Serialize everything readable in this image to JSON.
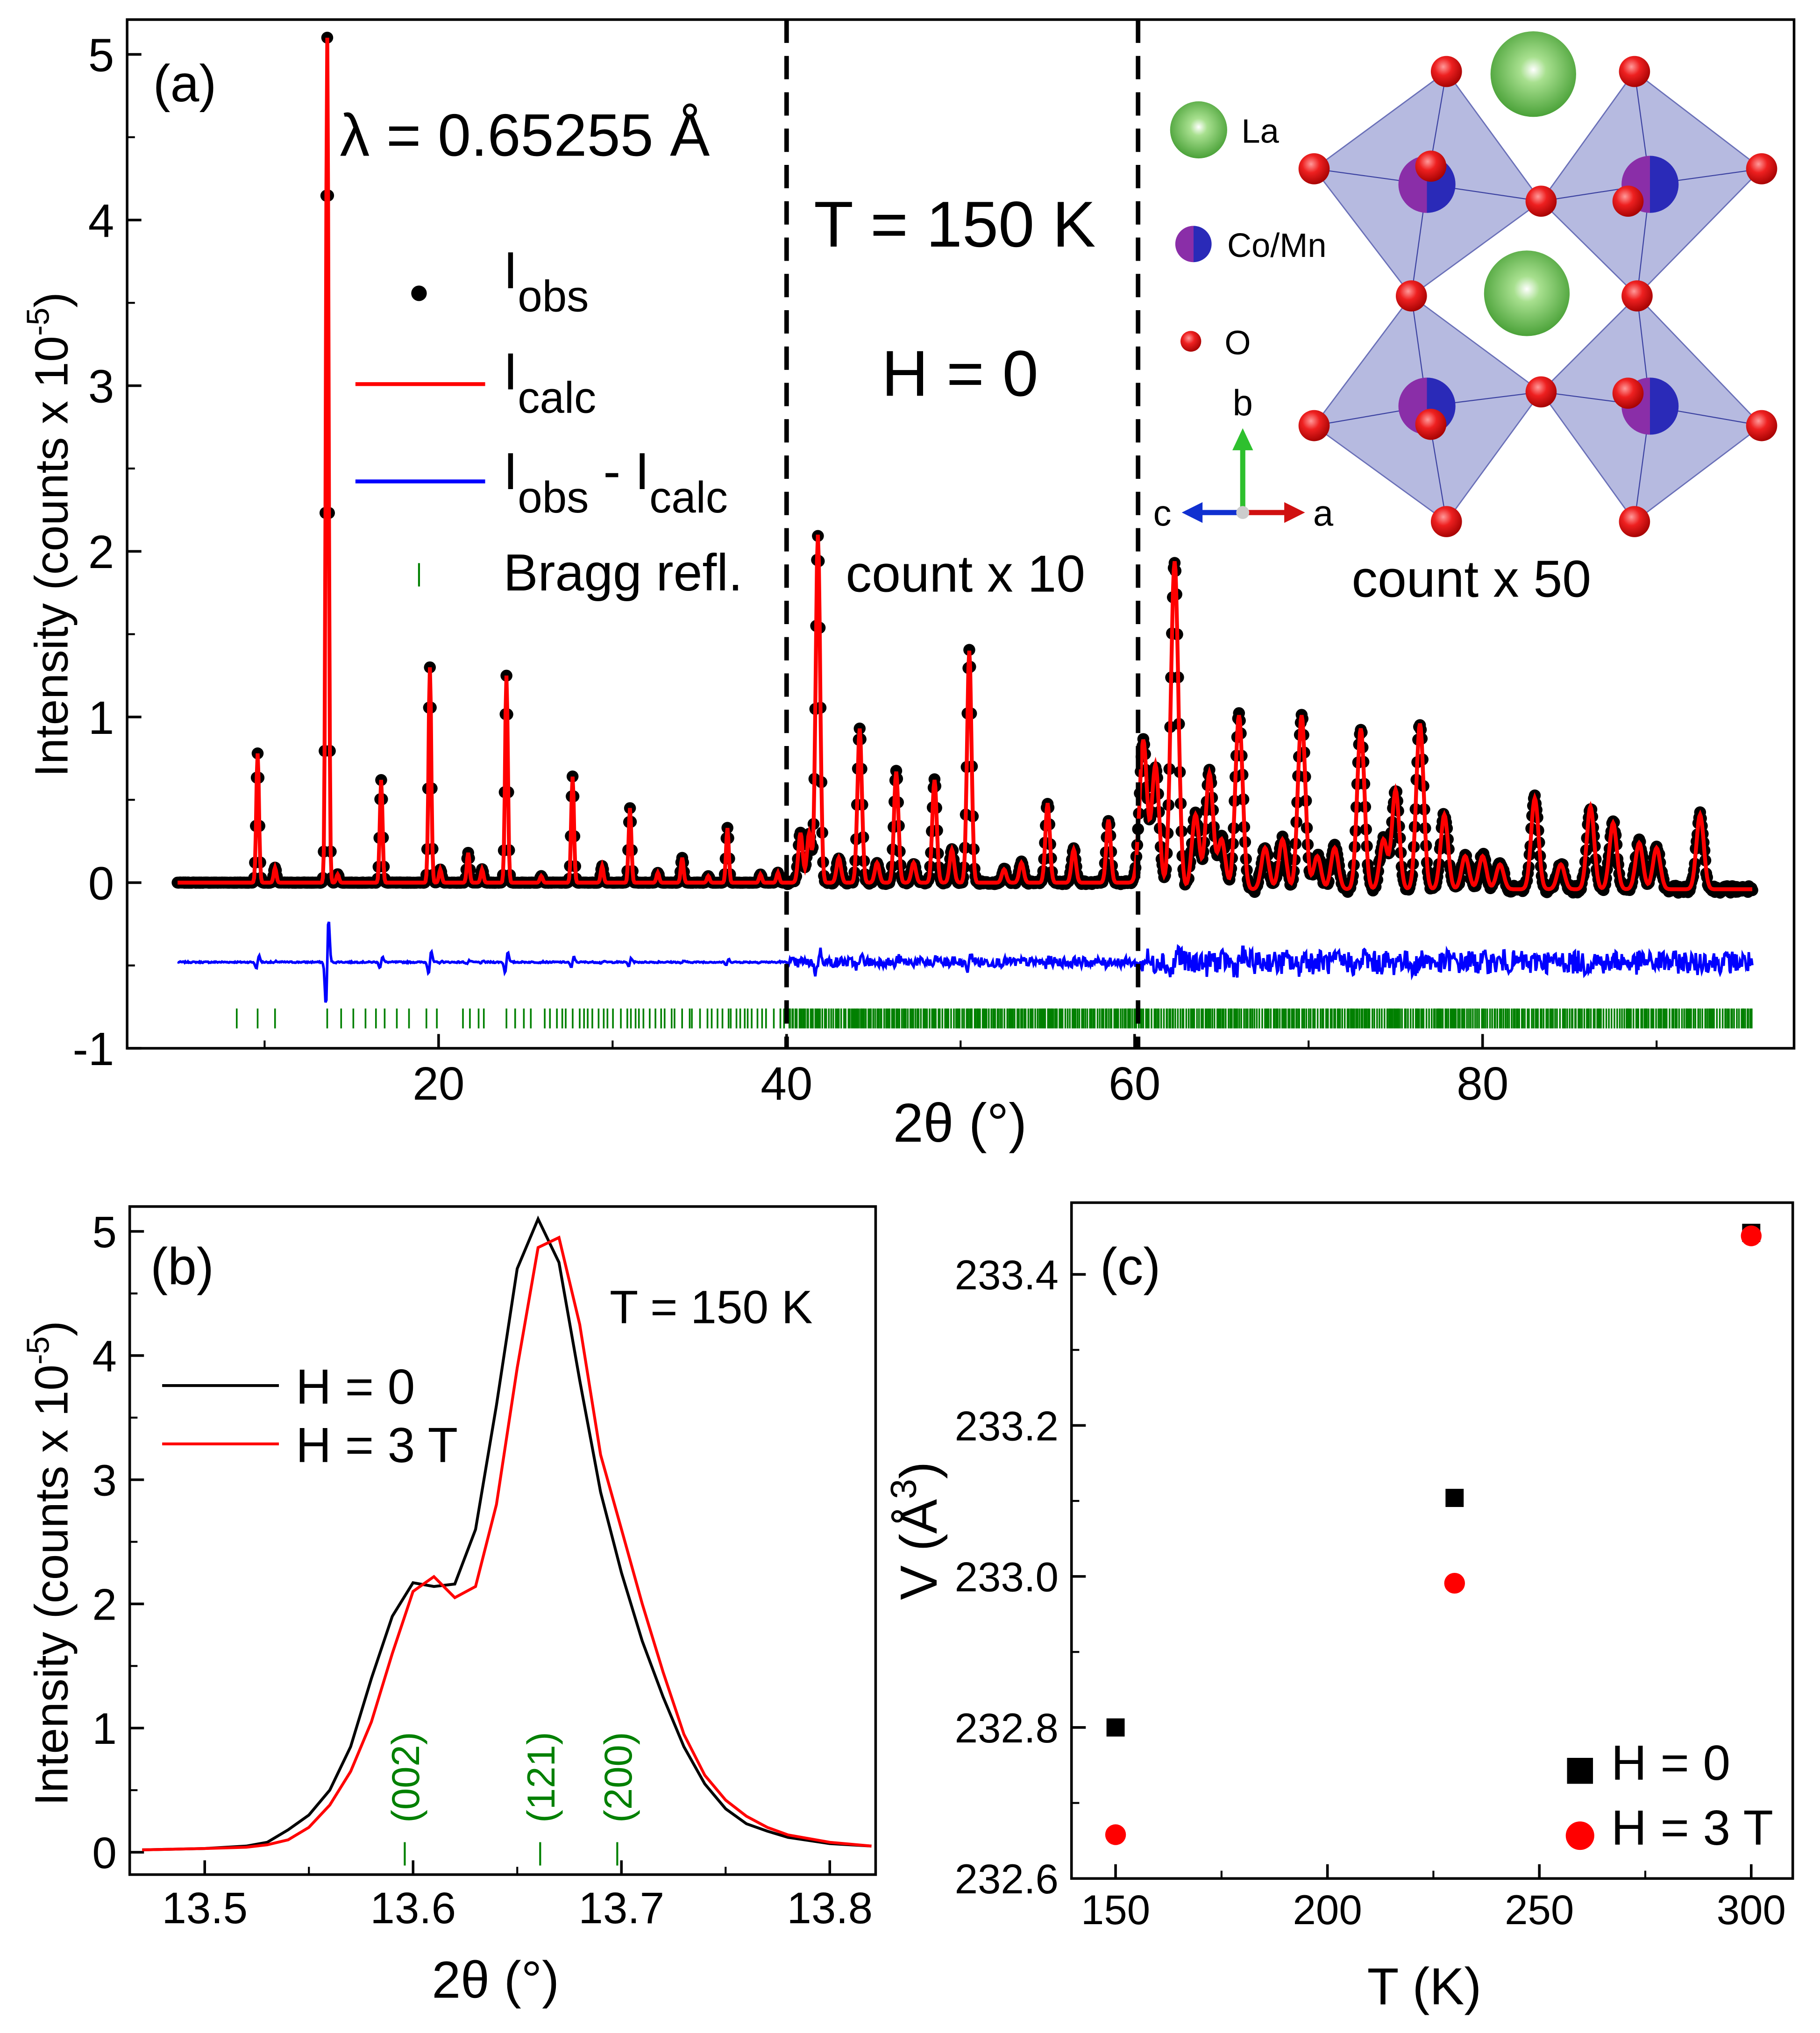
{
  "chart_data": [
    {
      "panel_label": "(a)",
      "type": "scatter+line",
      "xlabel": "2θ (°)",
      "ylabel": "Intensity (counts x 10",
      "ylabel_sup": "-5",
      "ylabel_end": ")",
      "xlim": [
        2.1,
        97.9
      ],
      "ylim": [
        -1,
        5.21
      ],
      "xticks": [
        20,
        40,
        60,
        80
      ],
      "yticks": [
        -1,
        0,
        1,
        2,
        3,
        4,
        5
      ],
      "grid": false,
      "annotations": {
        "wavelength": "λ = 0.65255 Å",
        "temperature": "T = 150 K",
        "field": "H = 0",
        "scale_region_2": "count x 10",
        "scale_region_3": "count x 50"
      },
      "region_boundaries": [
        40.0,
        60.2
      ],
      "legend": [
        {
          "main": "I",
          "sub": "obs",
          "marker": "dot"
        },
        {
          "main": "I",
          "sub": "calc",
          "marker": "red-line"
        },
        {
          "main": "I",
          "sub": "obs",
          "main2": " - I",
          "sub2": "calc",
          "marker": "blue-line"
        },
        {
          "main": "Bragg refl.",
          "marker": "green-tick"
        }
      ],
      "peaks_2theta_intensity": [
        [
          9.6,
          0.78
        ],
        [
          10.6,
          0.09
        ],
        [
          13.6,
          5.1
        ],
        [
          14.2,
          0.05
        ],
        [
          16.7,
          0.62
        ],
        [
          19.5,
          1.3
        ],
        [
          20.1,
          0.08
        ],
        [
          21.7,
          0.18
        ],
        [
          22.5,
          0.08
        ],
        [
          23.9,
          1.25
        ],
        [
          25.9,
          0.04
        ],
        [
          27.7,
          0.64
        ],
        [
          29.4,
          0.1
        ],
        [
          31.0,
          0.45
        ],
        [
          32.6,
          0.06
        ],
        [
          34.0,
          0.15
        ],
        [
          35.5,
          0.04
        ],
        [
          36.6,
          0.33
        ],
        [
          38.5,
          0.05
        ],
        [
          39.5,
          0.06
        ],
        [
          40.8,
          0.3
        ],
        [
          41.3,
          0.3
        ],
        [
          41.8,
          2.1
        ],
        [
          43.0,
          0.15
        ],
        [
          44.2,
          0.93
        ],
        [
          45.2,
          0.12
        ],
        [
          46.3,
          0.67
        ],
        [
          47.3,
          0.12
        ],
        [
          48.5,
          0.62
        ],
        [
          49.5,
          0.2
        ],
        [
          50.5,
          1.4
        ],
        [
          52.5,
          0.08
        ],
        [
          53.5,
          0.12
        ],
        [
          55.0,
          0.48
        ],
        [
          56.5,
          0.2
        ],
        [
          58.5,
          0.38
        ],
        [
          60.5,
          0.9
        ],
        [
          61.2,
          0.75
        ],
        [
          62.3,
          1.98
        ],
        [
          63.5,
          0.45
        ],
        [
          64.3,
          0.7
        ],
        [
          65.0,
          0.3
        ],
        [
          66.0,
          1.05
        ],
        [
          67.5,
          0.25
        ],
        [
          68.5,
          0.3
        ],
        [
          69.6,
          1.05
        ],
        [
          70.5,
          0.2
        ],
        [
          71.5,
          0.25
        ],
        [
          73.0,
          0.97
        ],
        [
          74.3,
          0.3
        ],
        [
          75.0,
          0.6
        ],
        [
          76.4,
          1.0
        ],
        [
          77.8,
          0.45
        ],
        [
          79.0,
          0.2
        ],
        [
          80.0,
          0.2
        ],
        [
          81.0,
          0.15
        ],
        [
          83.0,
          0.55
        ],
        [
          84.5,
          0.15
        ],
        [
          86.2,
          0.5
        ],
        [
          87.5,
          0.4
        ],
        [
          89.0,
          0.28
        ],
        [
          90.0,
          0.25
        ],
        [
          92.5,
          0.45
        ]
      ],
      "x_range_measured": [
        5.0,
        95.5
      ],
      "difference_offset": -0.48,
      "bragg_tick_level": -0.82,
      "bragg_positions_low_angle": [
        8.4,
        9.6,
        10.6,
        13.6,
        14.4,
        15.1,
        15.8,
        16.4,
        16.9,
        17.6,
        18.3,
        19.3,
        19.9,
        21.4,
        21.8,
        22.3,
        22.6,
        23.9,
        24.4,
        24.9,
        25.3,
        26.1,
        26.4
      ],
      "structure_inset": {
        "legend": [
          "La",
          "Co/Mn",
          "O"
        ],
        "axes": {
          "b": "b",
          "c": "c",
          "a": "a"
        }
      },
      "colors": {
        "obs": "#000000",
        "calc": "#ff0000",
        "diff": "#0000ff",
        "bragg": "#008000",
        "La": "#4caf3a",
        "CoMn": "#3a2fb5",
        "O": "#e01010",
        "octahedra": "#9ea3d6"
      }
    },
    {
      "panel_label": "(b)",
      "type": "line",
      "xlabel": "2θ (°)",
      "ylabel": "Intensity (counts x 10",
      "ylabel_sup": "-5",
      "ylabel_end": ")",
      "xlim": [
        13.464,
        13.822
      ],
      "ylim": [
        -0.18,
        5.2
      ],
      "xticks": [
        13.5,
        13.6,
        13.7,
        13.8
      ],
      "yticks": [
        0,
        1,
        2,
        3,
        4,
        5
      ],
      "annotation": "T = 150 K",
      "x": [
        13.47,
        13.5,
        13.52,
        13.53,
        13.54,
        13.55,
        13.56,
        13.57,
        13.58,
        13.59,
        13.6,
        13.61,
        13.62,
        13.63,
        13.64,
        13.65,
        13.66,
        13.67,
        13.68,
        13.69,
        13.7,
        13.71,
        13.72,
        13.73,
        13.74,
        13.75,
        13.76,
        13.77,
        13.78,
        13.8,
        13.82
      ],
      "series": [
        {
          "name": "H = 0",
          "color": "#000000",
          "values": [
            0.02,
            0.03,
            0.05,
            0.08,
            0.18,
            0.3,
            0.5,
            0.85,
            1.4,
            1.9,
            2.17,
            2.14,
            2.16,
            2.6,
            3.6,
            4.7,
            5.1,
            4.75,
            3.8,
            2.9,
            2.25,
            1.7,
            1.25,
            0.85,
            0.55,
            0.35,
            0.23,
            0.17,
            0.12,
            0.07,
            0.05
          ]
        },
        {
          "name": "H = 3 T",
          "color": "#ff0000",
          "values": [
            0.02,
            0.03,
            0.04,
            0.06,
            0.1,
            0.2,
            0.38,
            0.65,
            1.05,
            1.6,
            2.1,
            2.22,
            2.05,
            2.14,
            2.8,
            3.9,
            4.87,
            4.95,
            4.25,
            3.2,
            2.6,
            2.0,
            1.45,
            0.95,
            0.62,
            0.42,
            0.29,
            0.2,
            0.14,
            0.08,
            0.05
          ]
        }
      ],
      "reflections": [
        {
          "label": "(002)",
          "x": 13.596
        },
        {
          "label": "(121)",
          "x": 13.661
        },
        {
          "label": "(200)",
          "x": 13.698
        }
      ],
      "reflection_color": "#008000",
      "legend_position": "upper-left"
    },
    {
      "panel_label": "(c)",
      "type": "scatter",
      "xlabel": "T (K)",
      "ylabel": "V (Å",
      "ylabel_sup": "3",
      "ylabel_end": ")",
      "xlim": [
        139.6,
        309.8
      ],
      "ylim": [
        232.6,
        233.495
      ],
      "xticks": [
        150,
        200,
        250,
        300
      ],
      "yticks": [
        232.6,
        232.8,
        233.0,
        233.2,
        233.4
      ],
      "ytick_labels": [
        "232.6",
        "232.8",
        "233.0",
        "233.2",
        "233.4"
      ],
      "series": [
        {
          "name": "H = 0",
          "marker": "square",
          "color": "#000000",
          "x": [
            150,
            230,
            300
          ],
          "values": [
            232.8,
            233.104,
            233.455
          ]
        },
        {
          "name": "H = 3 T",
          "marker": "circle",
          "color": "#ff0000",
          "x": [
            150,
            230,
            300
          ],
          "values": [
            232.658,
            232.991,
            233.451
          ]
        }
      ],
      "legend_position": "lower-right"
    }
  ]
}
